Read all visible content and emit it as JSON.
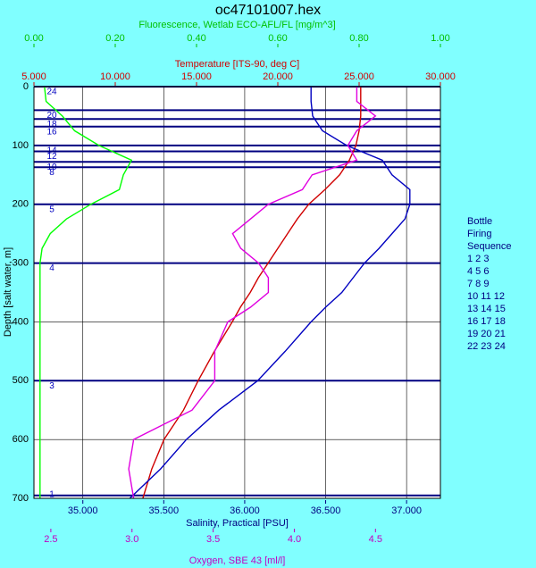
{
  "chart_data": {
    "type": "line",
    "title": "oc47101007.hex",
    "ylabel": "Depth [salt water, m]",
    "ylim": [
      0,
      700
    ],
    "yticks": [
      0,
      100,
      200,
      300,
      400,
      500,
      600,
      700
    ],
    "grid": true,
    "depth": [
      0,
      25,
      50,
      75,
      100,
      125,
      150,
      175,
      200,
      225,
      250,
      275,
      300,
      325,
      350,
      375,
      400,
      450,
      500,
      550,
      600,
      650,
      700
    ],
    "axes": {
      "fluorescence": {
        "label": "Fluorescence, Wetlab ECO-AFL/FL [mg/m^3]",
        "color": "#00c000",
        "side": "top1",
        "xlim": [
          0,
          1
        ],
        "xticks": [
          {
            "value": 0,
            "label": "0.00"
          },
          {
            "value": 0.2,
            "label": "0.20"
          },
          {
            "value": 0.4,
            "label": "0.40"
          },
          {
            "value": 0.6,
            "label": "0.60"
          },
          {
            "value": 0.8,
            "label": "0.80"
          },
          {
            "value": 1,
            "label": "1.00"
          }
        ]
      },
      "temperature": {
        "label": "Temperature [ITS-90, deg C]",
        "color": "#d00000",
        "side": "top2",
        "xlim": [
          5,
          30
        ],
        "xticks": [
          {
            "value": 5,
            "label": "5.000"
          },
          {
            "value": 10,
            "label": "10.000"
          },
          {
            "value": 15,
            "label": "15.000"
          },
          {
            "value": 20,
            "label": "20.000"
          },
          {
            "value": 25,
            "label": "25.000"
          },
          {
            "value": 30,
            "label": "30.000"
          }
        ]
      },
      "salinity": {
        "label": "Salinity, Practical [PSU]",
        "color": "#000080",
        "side": "bottom1",
        "xlim": [
          34.698,
          37.209
        ],
        "grid": true,
        "xticks": [
          {
            "value": 35,
            "label": "35.000"
          },
          {
            "value": 35.5,
            "label": "35.500"
          },
          {
            "value": 36,
            "label": "36.000"
          },
          {
            "value": 36.5,
            "label": "36.500"
          },
          {
            "value": 37,
            "label": "37.000"
          }
        ]
      },
      "oxygen": {
        "label": "Oxygen, SBE 43 [ml/l]",
        "color": "#c000c0",
        "side": "bottom2",
        "xlim": [
          2.396,
          4.9
        ],
        "xticks": [
          2.5,
          {
            "value": 3,
            "label": "3.0"
          },
          3.5,
          {
            "value": 4,
            "label": "4.0"
          },
          4.5
        ]
      }
    },
    "series": [
      {
        "name": "Fluorescence",
        "axis": "fluorescence",
        "color": "#00ff00",
        "values": [
          0.026,
          0.03,
          0.07,
          0.1,
          0.16,
          0.24,
          0.22,
          0.21,
          0.14,
          0.08,
          0.04,
          0.02,
          0.015,
          0.015,
          0.015,
          0.015,
          0.015,
          0.015,
          0.015,
          0.015,
          0.015,
          0.015,
          0.015
        ]
      },
      {
        "name": "Temperature",
        "axis": "temperature",
        "color": "#d00000",
        "values": [
          25.1,
          25.1,
          25.1,
          25.0,
          24.8,
          24.4,
          23.8,
          22.9,
          21.9,
          21.2,
          20.6,
          20.0,
          19.4,
          18.8,
          18.3,
          17.7,
          17.2,
          16.1,
          15.1,
          14.2,
          13.0,
          12.25,
          11.7
        ]
      },
      {
        "name": "Salinity",
        "axis": "salinity",
        "color": "#0000c0",
        "values": [
          36.41,
          36.41,
          36.42,
          36.48,
          36.63,
          36.85,
          36.91,
          37.02,
          37.02,
          36.99,
          36.91,
          36.83,
          36.74,
          36.67,
          36.6,
          36.5,
          36.41,
          36.25,
          36.08,
          35.84,
          35.64,
          35.48,
          35.29
        ]
      },
      {
        "name": "Oxygen",
        "axis": "oxygen",
        "color": "#e000e0",
        "values": [
          4.385,
          4.385,
          4.5,
          4.385,
          4.33,
          4.385,
          4.11,
          4.05,
          3.84,
          3.73,
          3.62,
          3.67,
          3.78,
          3.84,
          3.84,
          3.73,
          3.59,
          3.51,
          3.51,
          3.37,
          3.01,
          2.98,
          3.01
        ]
      }
    ],
    "bottles": [
      {
        "label": "24",
        "depth": 0
      },
      {
        "label": "20",
        "depth": 40
      },
      {
        "label": "18",
        "depth": 55
      },
      {
        "label": "16",
        "depth": 68
      },
      {
        "label": "14",
        "depth": 100
      },
      {
        "label": "12",
        "depth": 110
      },
      {
        "label": "10",
        "depth": 128
      },
      {
        "label": "8",
        "depth": 137
      },
      {
        "label": "5",
        "depth": 200
      },
      {
        "label": "4",
        "depth": 300
      },
      {
        "label": "3",
        "depth": 500
      },
      {
        "label": "1",
        "depth": 695
      }
    ],
    "legend": [
      "Bottle",
      "Firing",
      "Sequence",
      "1  2  3",
      "4  5  6",
      "7  8  9",
      "10 11 12",
      "13 14 15",
      "16 17 18",
      "19 20 21",
      "22 23 24"
    ]
  }
}
